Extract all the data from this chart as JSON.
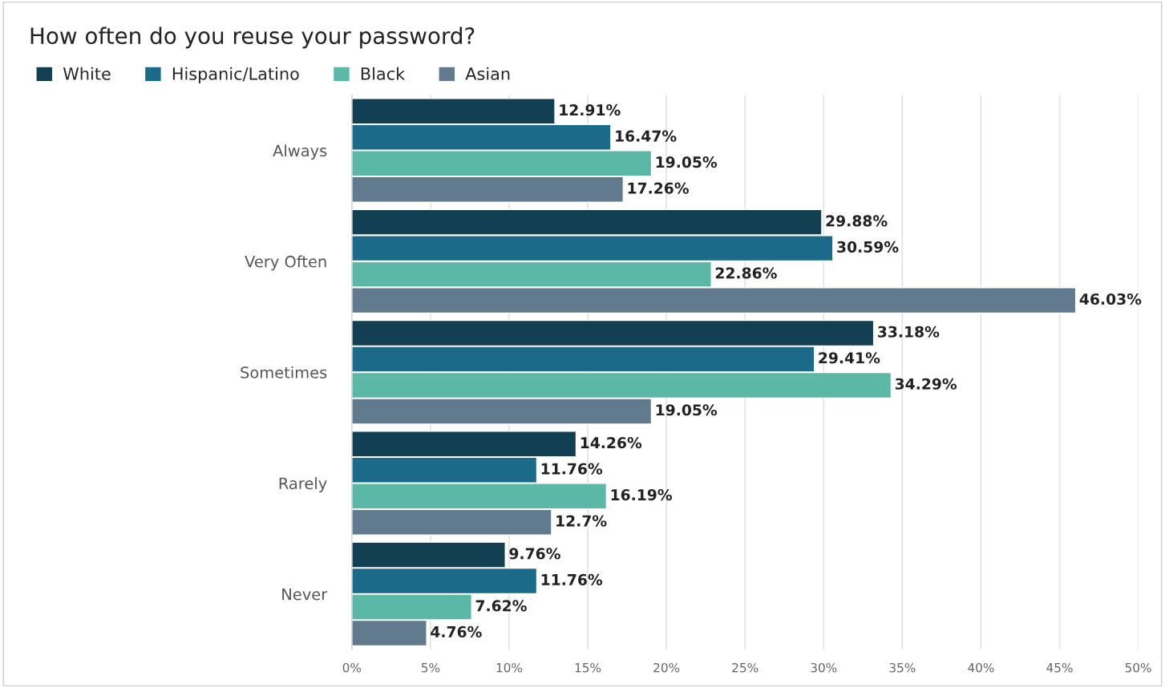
{
  "chart_data": {
    "type": "bar",
    "orientation": "horizontal",
    "title": "How often do you reuse your password?",
    "categories": [
      "Always",
      "Very Often",
      "Sometimes",
      "Rarely",
      "Never"
    ],
    "series": [
      {
        "name": "White",
        "color": "#123f52",
        "values": [
          12.91,
          29.88,
          33.18,
          14.26,
          9.76
        ],
        "value_labels": [
          "12.91%",
          "29.88%",
          "33.18%",
          "14.26%",
          "9.76%"
        ]
      },
      {
        "name": "Hispanic/Latino",
        "color": "#1b6a8a",
        "values": [
          16.47,
          30.59,
          29.41,
          11.76,
          11.76
        ],
        "value_labels": [
          "16.47%",
          "30.59%",
          "29.41%",
          "11.76%",
          "11.76%"
        ]
      },
      {
        "name": "Black",
        "color": "#5bb8a6",
        "values": [
          19.05,
          22.86,
          34.29,
          16.19,
          7.62
        ],
        "value_labels": [
          "19.05%",
          "22.86%",
          "34.29%",
          "16.19%",
          "7.62%"
        ]
      },
      {
        "name": "Asian",
        "color": "#617a8d",
        "values": [
          17.26,
          46.03,
          19.05,
          12.7,
          4.76
        ],
        "value_labels": [
          "17.26%",
          "46.03%",
          "19.05%",
          "12.7%",
          "4.76%"
        ]
      }
    ],
    "xlim": [
      0,
      50
    ],
    "xticks": [
      {
        "value": 0,
        "label": "0%"
      },
      {
        "value": 5,
        "label": "5%"
      },
      {
        "value": 10,
        "label": "10%"
      },
      {
        "value": 15,
        "label": "15%"
      },
      {
        "value": 20,
        "label": "20%"
      },
      {
        "value": 25,
        "label": "25%"
      },
      {
        "value": 30,
        "label": "30%"
      },
      {
        "value": 35,
        "label": "35%"
      },
      {
        "value": 40,
        "label": "40%"
      },
      {
        "value": 45,
        "label": "45%"
      },
      {
        "value": 50,
        "label": "50%"
      }
    ],
    "grid": "x",
    "legend": "top left"
  }
}
